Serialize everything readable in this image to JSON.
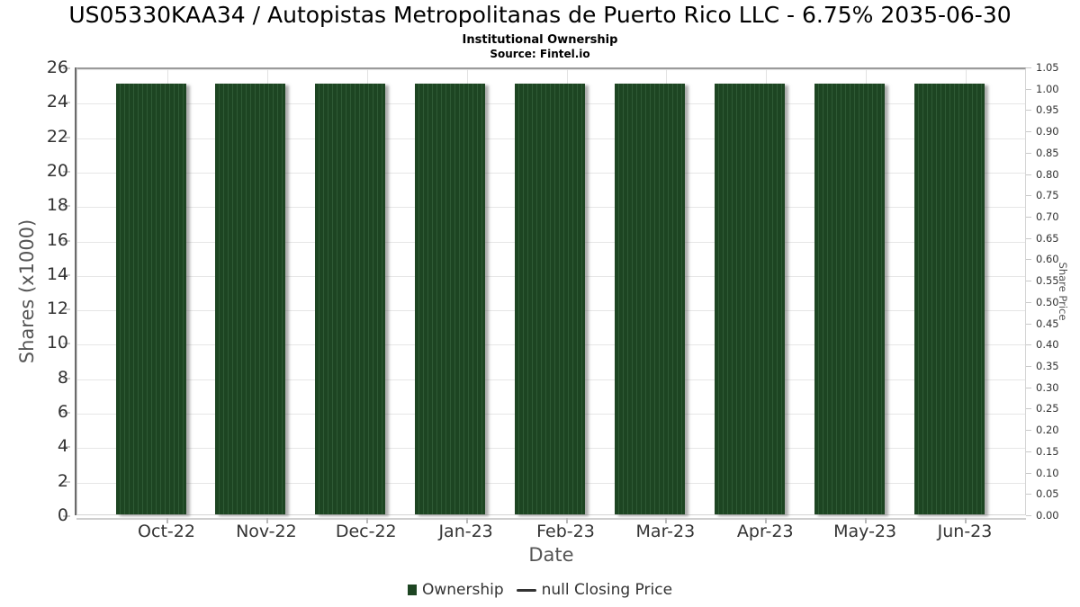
{
  "header": {
    "title": "US05330KAA34 / Autopistas Metropolitanas de Puerto Rico LLC - 6.75% 2035-06-30",
    "subtitle": "Institutional Ownership",
    "source": "Source: Fintel.io"
  },
  "chart_data": {
    "type": "bar",
    "title": "US05330KAA34 / Autopistas Metropolitanas de Puerto Rico LLC - 6.75% 2035-06-30",
    "subtitle": "Institutional Ownership",
    "source": "Source: Fintel.io",
    "categories": [
      "Oct-22",
      "Nov-22",
      "Dec-22",
      "Jan-23",
      "Feb-23",
      "Mar-23",
      "Apr-23",
      "May-23",
      "Jun-23"
    ],
    "series": [
      {
        "name": "Ownership",
        "type": "bar",
        "color": "#1d4522",
        "values": [
          25,
          25,
          25,
          25,
          25,
          25,
          25,
          25,
          25
        ]
      },
      {
        "name": "null Closing Price",
        "type": "line",
        "color": "#333333",
        "values": [
          null,
          null,
          null,
          null,
          null,
          null,
          null,
          null,
          null
        ]
      }
    ],
    "xlabel": "Date",
    "ylabel_left": "Shares (x1000)",
    "ylabel_right": "Share Price",
    "y_left": {
      "min": 0,
      "max": 26,
      "tick_step": 2
    },
    "y_right": {
      "min": 0,
      "max": 1.05,
      "tick_step": 0.05,
      "decimals": 2
    },
    "grid": true,
    "legend_position": "bottom"
  },
  "legend": {
    "items": [
      {
        "label": "Ownership",
        "marker": "square",
        "color": "#1d4522"
      },
      {
        "label": "null Closing Price",
        "marker": "line",
        "color": "#333333"
      }
    ]
  },
  "colors": {
    "bar_base": "#1d4522",
    "bar_stripe": "#2f5a35",
    "grid": "#e6e6e6",
    "axis_line": "#6b6b6b",
    "tick_text": "#333333",
    "axis_title": "#555555"
  }
}
